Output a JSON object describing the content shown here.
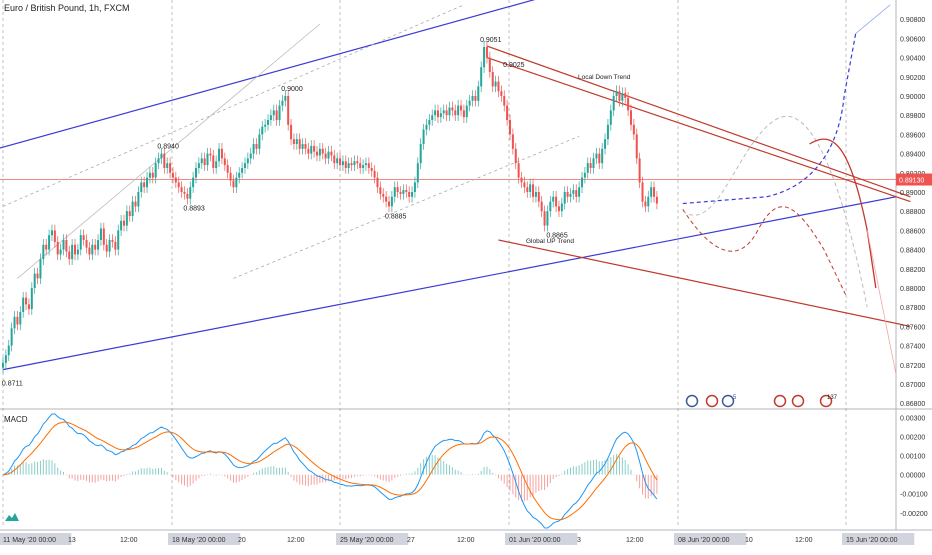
{
  "symbol_title": "Euro / British Pound, 1h, FXCM",
  "macd_label": "MACD",
  "last_price": "0.89130",
  "colors": {
    "up": "#26a69a",
    "down": "#ef5350",
    "trend_blue": "#3b3bd6",
    "trend_red": "#c0392b",
    "macd_line": "#2196f3",
    "signal_line": "#ff6d00",
    "price_line": "#f28b82"
  },
  "annotations": {
    "local_down_trend": "Local Down Trend",
    "global_up_trend": "Global UP Trend"
  },
  "price_labels": [
    {
      "text": "0.8711",
      "price": 0.8711,
      "x_index": 1
    },
    {
      "text": "0.8940",
      "price": 0.894,
      "x_index": 55
    },
    {
      "text": "0.8893",
      "price": 0.8893,
      "x_index": 64
    },
    {
      "text": "0.9000",
      "price": 0.9,
      "x_index": 98
    },
    {
      "text": "0.8885",
      "price": 0.8885,
      "x_index": 134
    },
    {
      "text": "0.9051",
      "price": 0.9051,
      "x_index": 167
    },
    {
      "text": "0.9025",
      "price": 0.9025,
      "x_index": 175
    },
    {
      "text": "0.8865",
      "price": 0.8865,
      "x_index": 190
    }
  ],
  "event_icons_count_a": "5",
  "event_icons_count_b": "137",
  "chart_data": {
    "type": "candlestick",
    "title": "Euro / British Pound, 1h, FXCM",
    "ylim": [
      0.8675,
      0.91
    ],
    "y_ticks": [
      "0.90800",
      "0.90600",
      "0.90400",
      "0.90200",
      "0.90000",
      "0.89800",
      "0.89600",
      "0.89400",
      "0.89200",
      "0.89000",
      "0.88800",
      "0.88600",
      "0.88400",
      "0.88200",
      "0.88000",
      "0.87800",
      "0.87600",
      "0.87400",
      "0.87200",
      "0.87000",
      "0.86800"
    ],
    "x_ticks": [
      {
        "label": "11 May '20  00:00",
        "boxed": true
      },
      {
        "label": "13",
        "boxed": false
      },
      {
        "label": "12:00",
        "boxed": false
      },
      {
        "label": "18 May '20  00:00",
        "boxed": true
      },
      {
        "label": "20",
        "boxed": false
      },
      {
        "label": "12:00",
        "boxed": false
      },
      {
        "label": "25 May '20  00:00",
        "boxed": true
      },
      {
        "label": "27",
        "boxed": false
      },
      {
        "label": "12:00",
        "boxed": false
      },
      {
        "label": "01 Jun '20  00:00",
        "boxed": true
      },
      {
        "label": "3",
        "boxed": false
      },
      {
        "label": "12:00",
        "boxed": false
      },
      {
        "label": "08 Jun '20  00:00",
        "boxed": true
      },
      {
        "label": "10",
        "boxed": false
      },
      {
        "label": "12:00",
        "boxed": false
      },
      {
        "label": "15 Jun '20  00:00",
        "boxed": true
      }
    ],
    "close_series": [
      0.8722,
      0.873,
      0.874,
      0.8758,
      0.877,
      0.8762,
      0.8775,
      0.879,
      0.8783,
      0.8778,
      0.88,
      0.8815,
      0.881,
      0.883,
      0.8845,
      0.884,
      0.8855,
      0.886,
      0.8848,
      0.8835,
      0.884,
      0.885,
      0.8838,
      0.883,
      0.8845,
      0.8835,
      0.884,
      0.8855,
      0.885,
      0.8842,
      0.8835,
      0.8845,
      0.884,
      0.885,
      0.8862,
      0.8845,
      0.8838,
      0.885,
      0.8848,
      0.884,
      0.886,
      0.887,
      0.8865,
      0.888,
      0.8875,
      0.889,
      0.8885,
      0.89,
      0.891,
      0.8905,
      0.8915,
      0.892,
      0.8915,
      0.893,
      0.8935,
      0.894,
      0.8925,
      0.893,
      0.892,
      0.8915,
      0.891,
      0.8905,
      0.89,
      0.8898,
      0.8893,
      0.8905,
      0.8915,
      0.8925,
      0.893,
      0.8935,
      0.8928,
      0.894,
      0.8938,
      0.8925,
      0.8932,
      0.8945,
      0.8935,
      0.8928,
      0.892,
      0.8912,
      0.8905,
      0.8915,
      0.892,
      0.8925,
      0.893,
      0.8935,
      0.894,
      0.895,
      0.8945,
      0.896,
      0.8968,
      0.897,
      0.8975,
      0.898,
      0.8985,
      0.8975,
      0.899,
      0.8995,
      0.9,
      0.897,
      0.8955,
      0.895,
      0.8955,
      0.8945,
      0.895,
      0.8945,
      0.894,
      0.8948,
      0.8942,
      0.8938,
      0.8945,
      0.894,
      0.8935,
      0.8942,
      0.8938,
      0.893,
      0.8935,
      0.8928,
      0.8932,
      0.8925,
      0.893,
      0.8928,
      0.8932,
      0.893,
      0.8925,
      0.8928,
      0.893,
      0.8925,
      0.8922,
      0.8915,
      0.8905,
      0.8898,
      0.8895,
      0.889,
      0.8885,
      0.8895,
      0.8905,
      0.89,
      0.8898,
      0.8902,
      0.89,
      0.8895,
      0.89,
      0.891,
      0.893,
      0.895,
      0.8965,
      0.897,
      0.8975,
      0.898,
      0.8985,
      0.8978,
      0.8982,
      0.8985,
      0.898,
      0.8988,
      0.8985,
      0.898,
      0.899,
      0.8985,
      0.8978,
      0.899,
      0.8995,
      0.9,
      0.8995,
      0.901,
      0.903,
      0.9051,
      0.904,
      0.9025,
      0.901,
      0.9015,
      0.9005,
      0.9,
      0.899,
      0.8975,
      0.896,
      0.8945,
      0.893,
      0.8915,
      0.891,
      0.8905,
      0.89,
      0.8908,
      0.8895,
      0.89,
      0.889,
      0.888,
      0.8865,
      0.888,
      0.889,
      0.8895,
      0.8885,
      0.888,
      0.8888,
      0.89,
      0.8895,
      0.8898,
      0.8902,
      0.8895,
      0.8905,
      0.8915,
      0.892,
      0.893,
      0.8925,
      0.8935,
      0.894,
      0.893,
      0.8945,
      0.8955,
      0.897,
      0.8985,
      0.9,
      0.9005,
      0.8995,
      0.9003,
      0.8998,
      0.8985,
      0.897,
      0.896,
      0.8935,
      0.891,
      0.889,
      0.8885,
      0.8895,
      0.8905,
      0.8895,
      0.8888
    ],
    "macd_ylim": [
      -0.0028,
      0.0034
    ],
    "macd_y_ticks": [
      "0.00300",
      "0.00200",
      "0.00100",
      "0.00000",
      "-0.00100",
      "-0.00200"
    ],
    "trend_lines": [
      {
        "name": "",
        "color": "blue",
        "points": [
          [
            -2,
            0.8945
          ],
          [
            190,
            0.9105
          ]
        ]
      },
      {
        "name": "",
        "color": "blue",
        "points": [
          [
            0,
            0.8715
          ],
          [
            310,
            0.8895
          ]
        ]
      },
      {
        "name": "",
        "color": "red",
        "points": [
          [
            168,
            0.9052
          ],
          [
            315,
            0.8895
          ]
        ]
      },
      {
        "name": "",
        "color": "red",
        "points": [
          [
            168,
            0.904
          ],
          [
            315,
            0.889
          ]
        ]
      },
      {
        "name": "",
        "color": "red",
        "points": [
          [
            172,
            0.885
          ],
          [
            315,
            0.876
          ]
        ]
      }
    ],
    "price_line": 0.8913
  }
}
